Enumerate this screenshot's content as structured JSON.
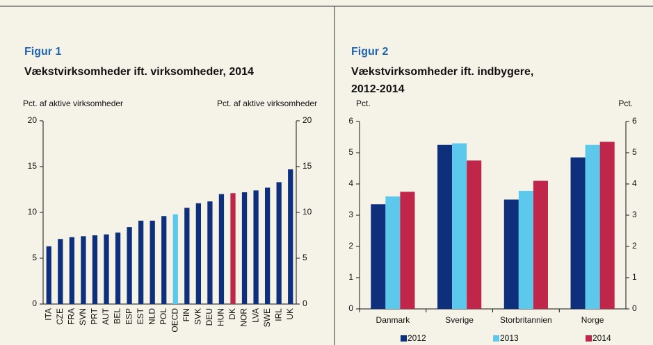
{
  "chart_data": [
    {
      "type": "bar",
      "label": "Figur 1",
      "title": "Vækstvirksomheder ift. virksomheder, 2014",
      "ylabel": "Pct. af aktive virksomheder",
      "y2label": "Pct. af aktive virksomheder",
      "categories": [
        "ITA",
        "CZE",
        "FRA",
        "SVN",
        "PRT",
        "AUT",
        "BEL",
        "ESP",
        "EST",
        "NLD",
        "POL",
        "OECD",
        "FIN",
        "SVK",
        "DEU",
        "HUN",
        "DK",
        "NOR",
        "LVA",
        "SWE",
        "IRL",
        "UK"
      ],
      "values": [
        6.3,
        7.1,
        7.3,
        7.4,
        7.5,
        7.6,
        7.8,
        8.4,
        9.1,
        9.1,
        9.6,
        9.8,
        10.5,
        11.0,
        11.2,
        12.0,
        12.1,
        12.2,
        12.4,
        12.7,
        13.3,
        14.7
      ],
      "colors": [
        "#0e2f7c",
        "#0e2f7c",
        "#0e2f7c",
        "#0e2f7c",
        "#0e2f7c",
        "#0e2f7c",
        "#0e2f7c",
        "#0e2f7c",
        "#0e2f7c",
        "#0e2f7c",
        "#0e2f7c",
        "#5bc8ec",
        "#0e2f7c",
        "#0e2f7c",
        "#0e2f7c",
        "#0e2f7c",
        "#c0264a",
        "#0e2f7c",
        "#0e2f7c",
        "#0e2f7c",
        "#0e2f7c",
        "#0e2f7c"
      ],
      "ylim": [
        0,
        20
      ],
      "yticks": [
        0,
        5,
        10,
        15,
        20
      ],
      "y2lim": [
        0,
        20
      ],
      "y2ticks": [
        0,
        5,
        10,
        15,
        20
      ]
    },
    {
      "type": "grouped_bar",
      "label": "Figur 2",
      "title": "Vækstvirksomheder ift. indbygere, 2012-2014",
      "ylabel": "Pct.",
      "y2label": "Pct.",
      "categories": [
        "Danmark",
        "Sverige",
        "Storbritannien",
        "Norge"
      ],
      "series": [
        {
          "name": "2012",
          "color": "#0e2f7c",
          "values": [
            3.35,
            5.25,
            3.5,
            4.85
          ]
        },
        {
          "name": "2013",
          "color": "#5bc8ec",
          "values": [
            3.6,
            5.3,
            3.78,
            5.25
          ]
        },
        {
          "name": "2014",
          "color": "#c0264a",
          "values": [
            3.75,
            4.75,
            4.1,
            5.35
          ]
        }
      ],
      "ylim": [
        0,
        6
      ],
      "yticks": [
        0,
        1,
        2,
        3,
        4,
        5,
        6
      ],
      "y2lim": [
        0,
        6
      ],
      "y2ticks": [
        0,
        1,
        2,
        3,
        4,
        5,
        6
      ]
    }
  ]
}
